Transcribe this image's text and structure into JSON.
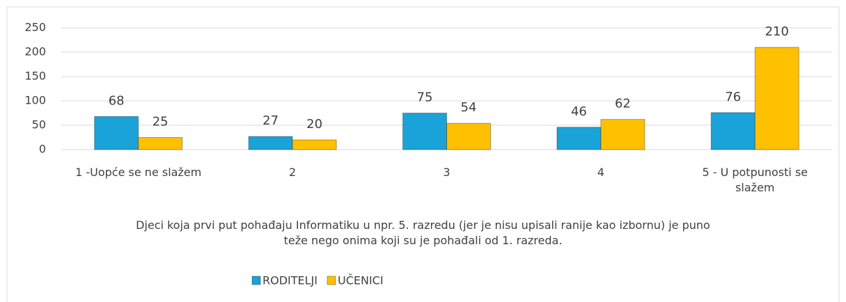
{
  "chart_data": {
    "type": "bar",
    "categories": [
      "1 -Uopće se ne slažem",
      "2",
      "3",
      "4",
      "5 - U potpunosti se slažem"
    ],
    "series": [
      {
        "name": "RODITELJI",
        "color": "#1ba3d8",
        "values": [
          68,
          27,
          75,
          46,
          76
        ]
      },
      {
        "name": "UČENICI",
        "color": "#ffc000",
        "values": [
          25,
          20,
          54,
          62,
          210
        ]
      }
    ],
    "x_label": "Djeci koja prvi put pohađaju Informatiku u npr. 5. razredu (jer je nisu upisali ranije kao izbornu) je puno teže nego onima koji su je pohađali od 1. razreda.",
    "ylim": [
      0,
      250
    ],
    "yticks": [
      0,
      50,
      100,
      150,
      200,
      250
    ],
    "grid": true,
    "legend": "bottom"
  }
}
